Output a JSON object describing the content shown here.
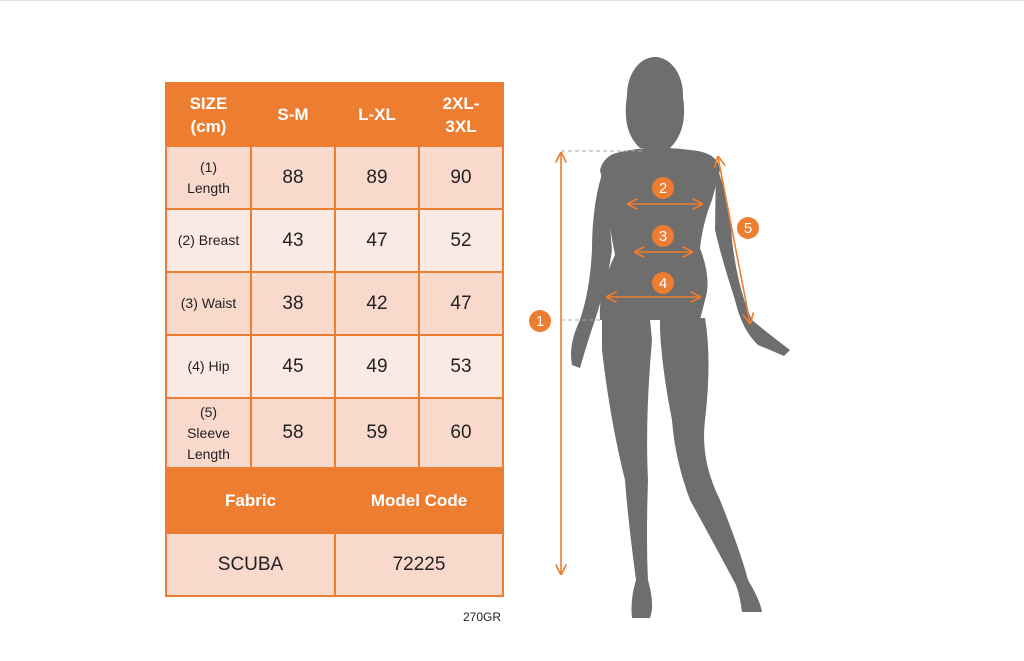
{
  "table": {
    "header": [
      "SIZE (cm)",
      "S-M",
      "L-XL",
      "2XL-3XL"
    ],
    "header_lines": [
      [
        "SIZE",
        "(cm)"
      ],
      [
        "S-M"
      ],
      [
        "L-XL"
      ],
      [
        "2XL-",
        "3XL"
      ]
    ],
    "rows": [
      {
        "label_lines": [
          "(1)",
          "Length"
        ],
        "values": [
          "88",
          "89",
          "90"
        ]
      },
      {
        "label_lines": [
          "(2) Breast"
        ],
        "values": [
          "43",
          "47",
          "52"
        ]
      },
      {
        "label_lines": [
          "(3) Waist"
        ],
        "values": [
          "38",
          "42",
          "47"
        ]
      },
      {
        "label_lines": [
          "(4) Hip"
        ],
        "values": [
          "45",
          "49",
          "53"
        ]
      },
      {
        "label_lines": [
          "(5)",
          "Sleeve",
          "Length"
        ],
        "values": [
          "58",
          "59",
          "60"
        ]
      }
    ],
    "fabric_label": "Fabric",
    "model_code_label": "Model Code",
    "fabric_value": "SCUBA",
    "model_code_value": "72225"
  },
  "caption": "270GR",
  "figure": {
    "markers": [
      "1",
      "2",
      "3",
      "4",
      "5"
    ],
    "colors": {
      "accent": "#ED7D31",
      "silhouette": "#6E6E6E",
      "cell_dark": "#F8D9CC",
      "cell_light": "#FBEAE3"
    }
  }
}
